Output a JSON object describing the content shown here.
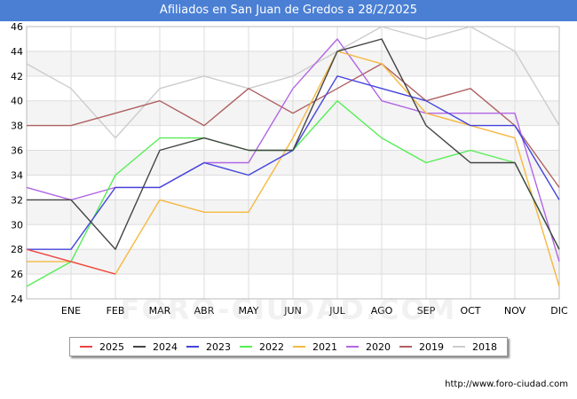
{
  "header": {
    "title": "Afiliados en San Juan de Gredos a 28/2/2025"
  },
  "watermark": "FORO-CIUDAD.COM",
  "footer": {
    "source": "http://www.foro-ciudad.com"
  },
  "chart_data": {
    "type": "line",
    "title": "Afiliados en San Juan de Gredos a 28/2/2025",
    "xlabel": "",
    "ylabel": "",
    "categories": [
      "",
      "ENE",
      "FEB",
      "MAR",
      "ABR",
      "MAY",
      "JUN",
      "JUL",
      "AGO",
      "SEP",
      "OCT",
      "NOV",
      "DIC"
    ],
    "ylim": [
      24,
      46
    ],
    "yticks": [
      24,
      26,
      28,
      30,
      32,
      34,
      36,
      38,
      40,
      42,
      44,
      46
    ],
    "grid": true,
    "legend_position": "bottom",
    "series": [
      {
        "name": "2018",
        "color": "#cccccc",
        "values": [
          43,
          41,
          37,
          41,
          42,
          41,
          42,
          44,
          46,
          45,
          46,
          44,
          38
        ]
      },
      {
        "name": "2019",
        "color": "#b06060",
        "values": [
          38,
          38,
          39,
          40,
          38,
          41,
          39,
          41,
          43,
          40,
          41,
          38,
          33
        ]
      },
      {
        "name": "2020",
        "color": "#b266e5",
        "values": [
          33,
          32,
          33,
          33,
          35,
          35,
          41,
          45,
          40,
          39,
          39,
          39,
          27
        ]
      },
      {
        "name": "2021",
        "color": "#f5b840",
        "values": [
          27,
          27,
          26,
          32,
          31,
          31,
          37,
          44,
          43,
          39,
          38,
          37,
          25
        ]
      },
      {
        "name": "2022",
        "color": "#55ee55",
        "values": [
          25,
          27,
          34,
          37,
          37,
          36,
          36,
          40,
          37,
          35,
          36,
          35,
          28
        ]
      },
      {
        "name": "2023",
        "color": "#4444dd",
        "values": [
          28,
          28,
          33,
          33,
          35,
          34,
          36,
          42,
          41,
          40,
          38,
          38,
          32
        ]
      },
      {
        "name": "2024",
        "color": "#444444",
        "values": [
          32,
          32,
          28,
          36,
          37,
          36,
          36,
          44,
          45,
          38,
          35,
          35,
          28
        ]
      },
      {
        "name": "2025",
        "color": "#ee4444",
        "values": [
          28,
          27,
          26,
          null,
          null,
          null,
          null,
          null,
          null,
          null,
          null,
          null,
          null
        ]
      }
    ],
    "legend_order": [
      "2025",
      "2024",
      "2023",
      "2022",
      "2021",
      "2020",
      "2019",
      "2018"
    ]
  }
}
